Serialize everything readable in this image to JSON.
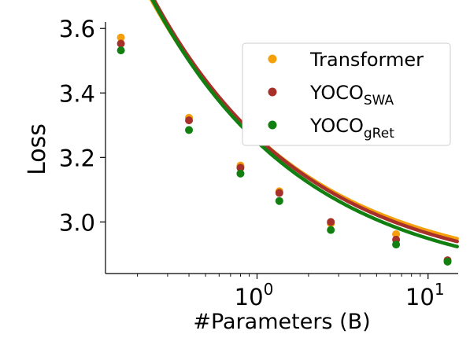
{
  "chart_data": {
    "type": "scatter",
    "xlabel": "#Parameters (B)",
    "ylabel": "Loss",
    "xscale": "log",
    "xlim": [
      0.13,
      15
    ],
    "ylim": [
      2.84,
      3.62
    ],
    "x_ticks": [
      {
        "value": 1,
        "base": "10",
        "exp": "0"
      },
      {
        "value": 10,
        "base": "10",
        "exp": "1"
      }
    ],
    "y_ticks": [
      {
        "value": 3.6,
        "label": "3.6"
      },
      {
        "value": 3.4,
        "label": "3.4"
      },
      {
        "value": 3.2,
        "label": "3.2"
      },
      {
        "value": 3.0,
        "label": "3.0"
      }
    ],
    "grid": false,
    "legend_position": "top-right",
    "series": [
      {
        "name": "Transformer",
        "name_main": "Transformer",
        "name_sub": "",
        "color": "#f5a00a",
        "x": [
          0.16,
          0.4,
          0.8,
          1.35,
          2.7,
          6.5
        ],
        "y": [
          3.572,
          3.323,
          3.175,
          3.095,
          2.995,
          2.962
        ],
        "fit": {
          "a": 2.8305,
          "b": 0.4318,
          "c": 0.483
        }
      },
      {
        "name": "YOCO_SWA",
        "name_main": "YOCO",
        "name_sub": "SWA",
        "color": "#a8302a",
        "x": [
          0.16,
          0.4,
          0.8,
          1.35,
          2.7,
          6.5,
          13
        ],
        "y": [
          3.553,
          3.315,
          3.168,
          3.09,
          3.0,
          2.945,
          2.881
        ],
        "fit": {
          "a": 2.8205,
          "b": 0.4418,
          "c": 0.487
        }
      },
      {
        "name": "YOCO_gRet",
        "name_main": "YOCO",
        "name_sub": "gRet",
        "color": "#118011",
        "x": [
          0.16,
          0.4,
          0.8,
          1.35,
          2.7,
          6.5,
          13
        ],
        "y": [
          3.532,
          3.285,
          3.15,
          3.065,
          2.975,
          2.93,
          2.877
        ],
        "fit": {
          "a": 2.8035,
          "b": 0.4459,
          "c": 0.487
        }
      }
    ]
  }
}
